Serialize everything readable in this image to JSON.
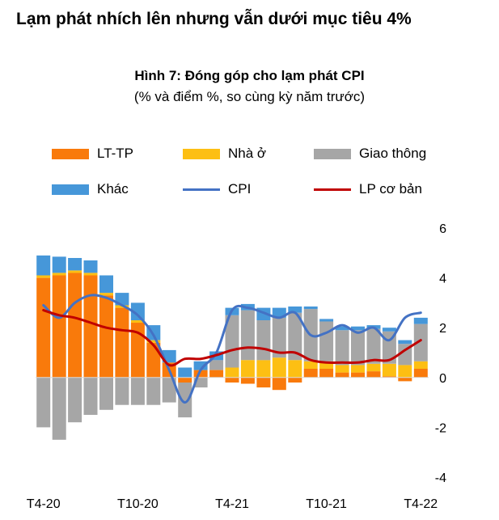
{
  "headline": "Lạm phát nhích lên nhưng vẫn dưới mục tiêu 4%",
  "chart_data": {
    "type": "bar",
    "stacked": true,
    "title": "Hình 7: Đóng góp cho lạm phát CPI",
    "subtitle": "(% và điểm %, so cùng kỳ năm trước)",
    "ylim": [
      -4,
      6
    ],
    "yticks": [
      "6",
      "4",
      "2",
      "0",
      "-2",
      "-4"
    ],
    "xtick_labels": [
      "T4-20",
      "T10-20",
      "T4-21",
      "T10-21",
      "T4-22"
    ],
    "xtick_positions": [
      0,
      6,
      12,
      18,
      24
    ],
    "n_periods": 25,
    "legend": [
      {
        "label": "LT-TP",
        "type": "bar",
        "color": "#F97A0B"
      },
      {
        "label": "Nhà ở",
        "type": "bar",
        "color": "#FDBF13"
      },
      {
        "label": "Giao thông",
        "type": "bar",
        "color": "#A6A6A6"
      },
      {
        "label": "Khác",
        "type": "bar",
        "color": "#4697D9"
      },
      {
        "label": "CPI",
        "type": "line",
        "color": "#4472C4"
      },
      {
        "label": "LP cơ bản",
        "type": "line",
        "color": "#C00000"
      }
    ],
    "series": [
      {
        "name": "LT-TP",
        "color": "#F97A0B",
        "values": [
          4.0,
          4.1,
          4.2,
          4.1,
          3.3,
          2.8,
          2.2,
          1.4,
          0.6,
          -0.2,
          0.3,
          0.3,
          -0.2,
          -0.25,
          -0.4,
          -0.5,
          -0.2,
          0.35,
          0.35,
          0.2,
          0.2,
          0.25,
          0.05,
          -0.15,
          0.35
        ]
      },
      {
        "name": "Nhà ở",
        "color": "#FDBF13",
        "values": [
          0.1,
          0.1,
          0.1,
          0.1,
          0.1,
          0.1,
          0.1,
          0.1,
          0.0,
          0.0,
          0.0,
          0.0,
          0.4,
          0.7,
          0.7,
          0.8,
          0.7,
          0.3,
          0.3,
          0.3,
          0.3,
          0.3,
          0.5,
          0.5,
          0.3
        ]
      },
      {
        "name": "Giao thông",
        "color": "#A6A6A6",
        "values": [
          -2.0,
          -2.5,
          -1.8,
          -1.5,
          -1.3,
          -1.1,
          -1.1,
          -1.1,
          -1.0,
          -1.4,
          -0.4,
          0.4,
          2.1,
          2.0,
          1.6,
          1.6,
          1.9,
          2.1,
          1.6,
          1.4,
          1.4,
          1.4,
          1.3,
          0.85,
          1.5
        ]
      },
      {
        "name": "Khác",
        "color": "#4697D9",
        "values": [
          0.8,
          0.65,
          0.5,
          0.5,
          0.7,
          0.5,
          0.7,
          0.6,
          0.5,
          0.4,
          0.35,
          0.35,
          0.3,
          0.25,
          0.5,
          0.4,
          0.25,
          0.1,
          0.1,
          0.15,
          0.15,
          0.15,
          0.15,
          0.15,
          0.25
        ]
      },
      {
        "name": "CPI",
        "type": "line",
        "color": "#4472C4",
        "values": [
          2.9,
          2.4,
          3.0,
          3.3,
          3.2,
          2.9,
          2.5,
          1.7,
          0.3,
          -1.0,
          0.3,
          1.0,
          2.7,
          2.8,
          2.6,
          2.4,
          2.6,
          1.7,
          1.8,
          2.1,
          1.8,
          2.0,
          1.5,
          2.4,
          2.6
        ]
      },
      {
        "name": "LP cơ bản",
        "type": "line",
        "color": "#C00000",
        "values": [
          2.7,
          2.5,
          2.4,
          2.2,
          2.0,
          1.9,
          1.8,
          1.3,
          0.5,
          0.75,
          0.75,
          0.9,
          1.1,
          1.2,
          1.15,
          1.0,
          1.0,
          0.7,
          0.6,
          0.6,
          0.6,
          0.7,
          0.7,
          1.1,
          1.5
        ]
      }
    ]
  }
}
